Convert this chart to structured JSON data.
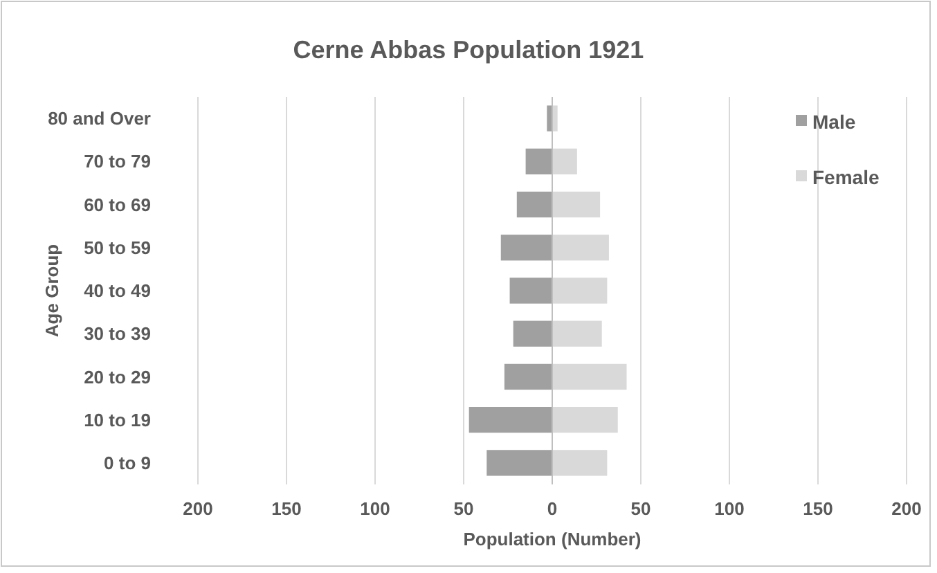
{
  "chart_data": {
    "type": "bar",
    "orientation": "horizontal",
    "stacked": true,
    "title": "Cerne Abbas Population 1921",
    "xlabel": "Population (Number)",
    "ylabel": "Age Group",
    "categories": [
      "80 and Over",
      "70 to 79",
      "60 to 69",
      "50 to 59",
      "40 to 49",
      "30 to 39",
      "20 to 29",
      "10 to 19",
      "0 to 9"
    ],
    "series": [
      {
        "name": "Male",
        "color": "#a0a0a0",
        "values": [
          -3,
          -15,
          -20,
          -29,
          -24,
          -22,
          -27,
          -47,
          -37
        ]
      },
      {
        "name": "Female",
        "color": "#d9d9d9",
        "values": [
          3,
          14,
          27,
          32,
          31,
          28,
          42,
          37,
          31
        ]
      }
    ],
    "xlim": [
      -200,
      200
    ],
    "xticks": [
      {
        "value": -200,
        "label": "200"
      },
      {
        "value": -150,
        "label": "150"
      },
      {
        "value": -100,
        "label": "100"
      },
      {
        "value": -50,
        "label": "50"
      },
      0,
      50,
      100,
      150,
      200
    ],
    "grid": "x",
    "legend": "top right"
  }
}
